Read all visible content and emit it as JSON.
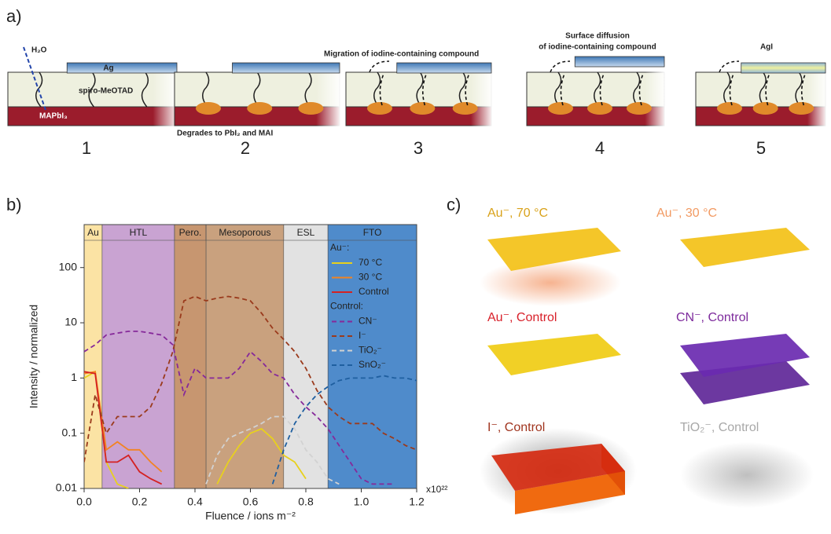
{
  "panel_a": {
    "label": "a)",
    "steps": [
      {
        "number": "1",
        "texts": [
          "H₂O",
          "Ag",
          "spiro-MeOTAD",
          "MAPbI₃"
        ]
      },
      {
        "number": "2",
        "texts": [
          "Degrades to PbI₂ and MAI"
        ]
      },
      {
        "number": "3",
        "texts": [
          "Migration of iodine-containing compound"
        ]
      },
      {
        "number": "4",
        "texts": [
          "Surface diffusion",
          "of iodine-containing compound"
        ]
      },
      {
        "number": "5",
        "texts": [
          "AgI"
        ]
      }
    ]
  },
  "panel_b_label": "b)",
  "chart_data": {
    "type": "line",
    "x_label": "Fluence / ions m⁻²",
    "y_label": "Intensity / normalized",
    "x_multiplier": "x10²²",
    "xlim": [
      0,
      1.2
    ],
    "ylim": [
      0.01,
      600
    ],
    "log_y": true,
    "xticks": [
      {
        "value": 0,
        "label": "0.0"
      },
      0.2,
      0.4,
      0.6,
      0.8,
      {
        "value": 1,
        "label": "1.0"
      },
      1.2
    ],
    "yticks": [
      0.01,
      0.1,
      1,
      10,
      100
    ],
    "legend_position": "upper right",
    "regions": [
      {
        "label": "Au",
        "range": [
          0,
          0.065
        ],
        "color": "#fbe3a4"
      },
      {
        "label": "HTL",
        "range": [
          0.065,
          0.326
        ],
        "color": "#c9a3d2"
      },
      {
        "label": "Pero.",
        "range": [
          0.326,
          0.44
        ],
        "color": "#c79670"
      },
      {
        "label": "Mesoporous",
        "range": [
          0.44,
          0.72
        ],
        "color": "#c9a17e"
      },
      {
        "label": "ESL",
        "range": [
          0.72,
          0.88
        ],
        "color": "#e2e2e2"
      },
      {
        "label": "FTO",
        "range": [
          0.88,
          1.2
        ],
        "color": "#4f8bcb"
      }
    ],
    "x": [
      0,
      0.04,
      0.08,
      0.12,
      0.16,
      0.2,
      0.24,
      0.28,
      0.32,
      0.36,
      0.4,
      0.44,
      0.48,
      0.52,
      0.56,
      0.6,
      0.64,
      0.68,
      0.72,
      0.76,
      0.8,
      0.84,
      0.88,
      0.92,
      0.96,
      1,
      1.04,
      1.08,
      1.12,
      1.16,
      1.2
    ],
    "series_groups": [
      {
        "title": "Au⁻:",
        "series": [
          {
            "name": "70 °C",
            "color": "#e8d11c",
            "dashed": false,
            "values": [
              1.0,
              1.3,
              0.03,
              0.012,
              0.01,
              null,
              null,
              null,
              null,
              null,
              null,
              null,
              0.012,
              0.03,
              0.06,
              0.1,
              0.12,
              0.08,
              0.04,
              0.03,
              0.015,
              null,
              null,
              null,
              null,
              null,
              null,
              null,
              null,
              null,
              null
            ]
          },
          {
            "name": "30 °C",
            "color": "#f28322",
            "dashed": false,
            "values": [
              1.2,
              1.3,
              0.05,
              0.07,
              0.05,
              0.05,
              0.03,
              0.02,
              null,
              null,
              null,
              null,
              null,
              null,
              null,
              null,
              null,
              null,
              null,
              null,
              null,
              null,
              null,
              null,
              null,
              null,
              null,
              null,
              null,
              null,
              null
            ]
          },
          {
            "name": "Control",
            "color": "#d42222",
            "dashed": false,
            "values": [
              1.3,
              1.2,
              0.03,
              0.03,
              0.04,
              0.02,
              0.015,
              0.012,
              null,
              null,
              null,
              null,
              null,
              null,
              null,
              null,
              null,
              null,
              null,
              null,
              null,
              null,
              null,
              null,
              null,
              null,
              null,
              null,
              null,
              null,
              null
            ]
          }
        ]
      },
      {
        "title": "Control:",
        "series": [
          {
            "name": "CN⁻",
            "color": "#86299a",
            "dashed": true,
            "values": [
              3,
              4,
              6,
              6.5,
              7,
              7,
              6.5,
              6,
              4,
              0.5,
              1.5,
              1,
              1,
              1,
              1.5,
              3,
              2,
              1.2,
              1,
              0.5,
              0.3,
              0.2,
              0.12,
              0.06,
              0.03,
              0.015,
              0.012,
              0.012,
              0.012,
              null,
              null
            ]
          },
          {
            "name": "I⁻",
            "color": "#9a3a1c",
            "dashed": true,
            "values": [
              0.03,
              0.5,
              0.1,
              0.2,
              0.2,
              0.2,
              0.3,
              0.8,
              3,
              25,
              30,
              25,
              28,
              30,
              28,
              25,
              15,
              8,
              5,
              3,
              1.5,
              0.6,
              0.3,
              0.2,
              0.15,
              0.15,
              0.15,
              0.1,
              0.08,
              0.06,
              0.05
            ]
          },
          {
            "name": "TiO₂⁻",
            "color": "#d2d2d2",
            "dashed": true,
            "values": [
              null,
              null,
              null,
              null,
              null,
              null,
              null,
              null,
              null,
              null,
              null,
              0.012,
              0.04,
              0.08,
              0.1,
              0.12,
              0.15,
              0.2,
              0.2,
              0.12,
              0.05,
              0.03,
              0.015,
              0.012,
              null,
              null,
              null,
              null,
              null,
              null,
              null
            ]
          },
          {
            "name": "SnO₂⁻",
            "color": "#1f5fa0",
            "dashed": true,
            "values": [
              null,
              null,
              null,
              null,
              null,
              null,
              null,
              null,
              null,
              null,
              null,
              null,
              null,
              null,
              null,
              null,
              null,
              0.012,
              0.05,
              0.15,
              0.3,
              0.5,
              0.7,
              0.9,
              1,
              1,
              1,
              1.1,
              1,
              1,
              0.9
            ]
          }
        ]
      }
    ]
  },
  "panel_c": {
    "label": "c)",
    "images": [
      {
        "label": "Au⁻, 70 °C"
      },
      {
        "label": "Au⁻, 30 °C"
      },
      {
        "label": "Au⁻, Control"
      },
      {
        "label": "CN⁻, Control"
      },
      {
        "label": "I⁻, Control"
      },
      {
        "label": "TiO₂⁻, Control"
      }
    ]
  }
}
